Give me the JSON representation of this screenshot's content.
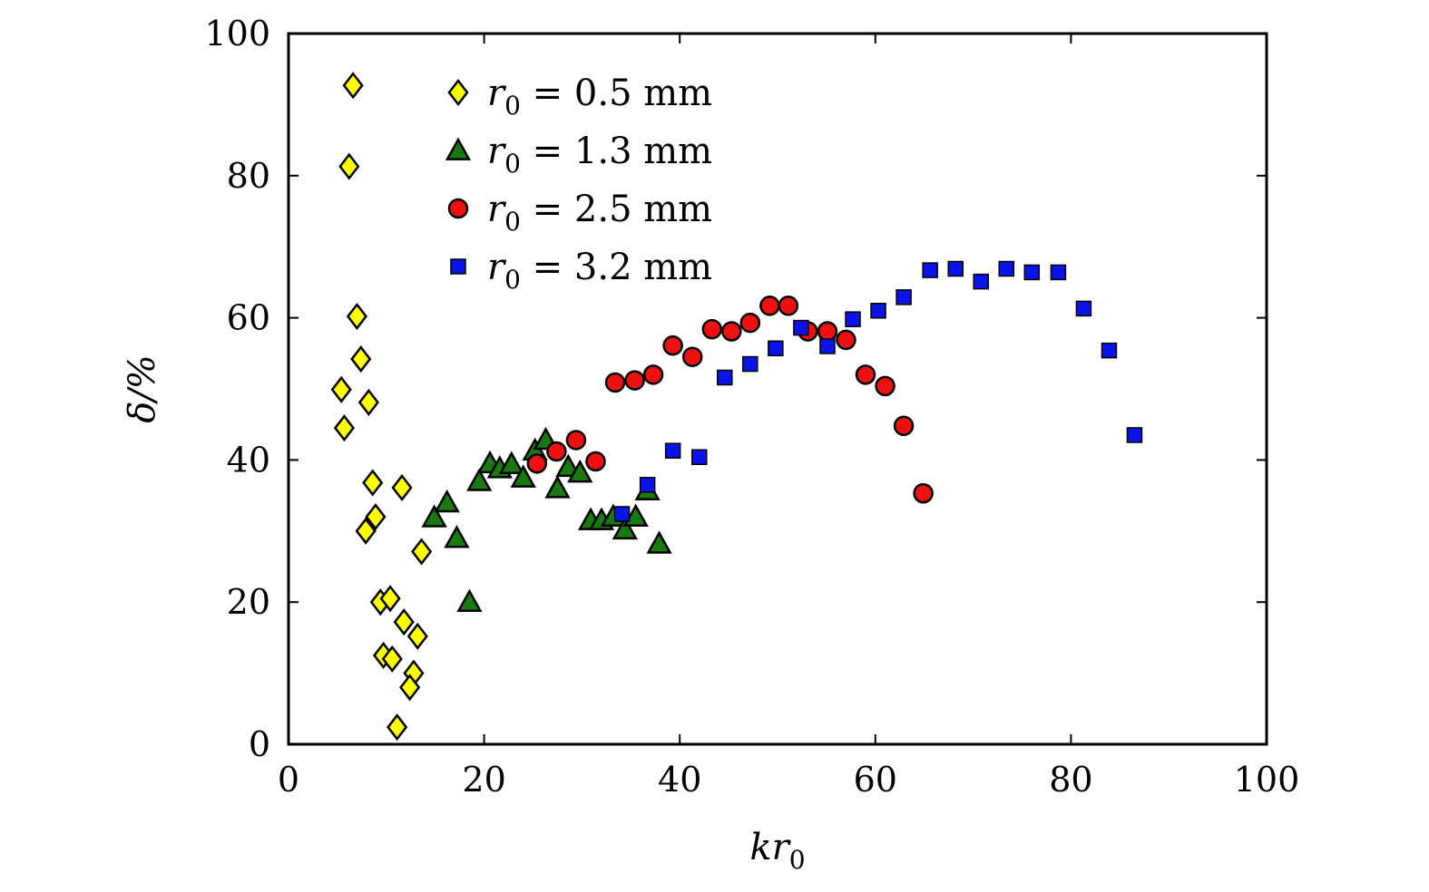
{
  "chart_data": {
    "type": "scatter",
    "xlabel": {
      "main": "kr",
      "sub": "0"
    },
    "ylabel": "δ/%",
    "xlim": [
      0,
      100
    ],
    "ylim": [
      0,
      100
    ],
    "xticks": [
      "0",
      "20",
      "40",
      "60",
      "80",
      "100"
    ],
    "yticks": [
      "0",
      "20",
      "40",
      "60",
      "80",
      "100"
    ],
    "legend_position": "top-left",
    "grid": false,
    "series": [
      {
        "name": "r0 = 0.5 mm",
        "legend": {
          "var": "r",
          "sub": "0",
          "rest": " = 0.5 mm"
        },
        "marker": "diamond",
        "color": "#ffff00",
        "points": [
          [
            6.6,
            92.7
          ],
          [
            6.2,
            81.3
          ],
          [
            7.0,
            60.2
          ],
          [
            7.4,
            54.2
          ],
          [
            5.4,
            49.9
          ],
          [
            8.2,
            48.1
          ],
          [
            5.7,
            44.5
          ],
          [
            8.6,
            36.8
          ],
          [
            11.6,
            36.1
          ],
          [
            8.9,
            32.0
          ],
          [
            7.9,
            30.0
          ],
          [
            13.6,
            27.1
          ],
          [
            9.4,
            20.0
          ],
          [
            10.4,
            20.5
          ],
          [
            11.8,
            17.2
          ],
          [
            13.2,
            15.2
          ],
          [
            9.7,
            12.5
          ],
          [
            10.6,
            12.0
          ],
          [
            12.8,
            10.0
          ],
          [
            12.4,
            8.0
          ],
          [
            11.1,
            2.4
          ]
        ]
      },
      {
        "name": "r0 = 1.3 mm",
        "legend": {
          "var": "r",
          "sub": "0",
          "rest": " = 1.3 mm"
        },
        "marker": "triangle",
        "color": "#1a7a12",
        "points": [
          [
            18.5,
            20.0
          ],
          [
            17.2,
            29.0
          ],
          [
            14.9,
            31.9
          ],
          [
            16.2,
            34.0
          ],
          [
            19.5,
            37.0
          ],
          [
            20.6,
            39.5
          ],
          [
            21.6,
            38.8
          ],
          [
            22.8,
            39.4
          ],
          [
            24.0,
            37.5
          ],
          [
            25.2,
            41.3
          ],
          [
            26.3,
            42.8
          ],
          [
            27.5,
            36.0
          ],
          [
            28.6,
            39.0
          ],
          [
            29.8,
            38.2
          ],
          [
            30.9,
            31.5
          ],
          [
            32.0,
            31.5
          ],
          [
            33.2,
            32.0
          ],
          [
            34.4,
            30.2
          ],
          [
            35.5,
            32.0
          ],
          [
            36.7,
            35.7
          ],
          [
            37.9,
            28.2
          ]
        ]
      },
      {
        "name": "r0 = 2.5 mm",
        "legend": {
          "var": "r",
          "sub": "0",
          "rest": " = 2.5 mm"
        },
        "marker": "circle",
        "color": "#ee1111",
        "points": [
          [
            25.4,
            39.5
          ],
          [
            27.4,
            41.2
          ],
          [
            29.4,
            42.8
          ],
          [
            31.4,
            39.8
          ],
          [
            33.4,
            50.9
          ],
          [
            35.4,
            51.2
          ],
          [
            37.3,
            52.0
          ],
          [
            39.3,
            56.1
          ],
          [
            41.3,
            54.5
          ],
          [
            43.3,
            58.4
          ],
          [
            45.3,
            58.1
          ],
          [
            47.2,
            59.3
          ],
          [
            49.2,
            61.7
          ],
          [
            51.1,
            61.7
          ],
          [
            53.1,
            58.1
          ],
          [
            55.1,
            58.1
          ],
          [
            57.0,
            56.9
          ],
          [
            59.0,
            52.0
          ],
          [
            61.0,
            50.4
          ],
          [
            62.9,
            44.8
          ],
          [
            64.9,
            35.3
          ]
        ]
      },
      {
        "name": "r0 = 3.2 mm",
        "legend": {
          "var": "r",
          "sub": "0",
          "rest": " = 3.2 mm"
        },
        "marker": "square",
        "color": "#0a14e6",
        "points": [
          [
            34.1,
            32.4
          ],
          [
            36.7,
            36.5
          ],
          [
            39.3,
            41.3
          ],
          [
            42.0,
            40.4
          ],
          [
            44.6,
            51.6
          ],
          [
            47.2,
            53.5
          ],
          [
            49.8,
            55.7
          ],
          [
            52.4,
            58.6
          ],
          [
            55.1,
            56.0
          ],
          [
            57.7,
            59.8
          ],
          [
            60.3,
            61.0
          ],
          [
            62.9,
            62.9
          ],
          [
            65.6,
            66.7
          ],
          [
            68.2,
            66.9
          ],
          [
            70.8,
            65.1
          ],
          [
            73.4,
            66.9
          ],
          [
            76.0,
            66.4
          ],
          [
            78.7,
            66.4
          ],
          [
            81.3,
            61.3
          ],
          [
            83.9,
            55.4
          ],
          [
            86.5,
            43.5
          ]
        ]
      }
    ]
  }
}
